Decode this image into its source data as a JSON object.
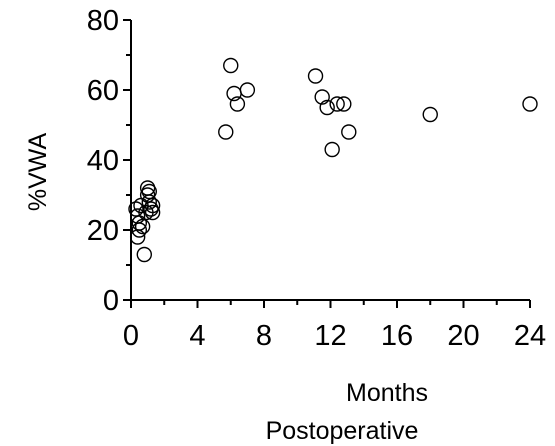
{
  "chart_data": {
    "type": "scatter",
    "title": "",
    "xlabel_line1": "Months",
    "xlabel_line2": "Postoperative",
    "ylabel": "%VWA",
    "xlim": [
      0,
      24
    ],
    "ylim": [
      0,
      80
    ],
    "x_ticks": [
      0,
      4,
      8,
      12,
      16,
      20,
      24
    ],
    "x_tick_labels": [
      "0",
      "4",
      "8",
      "12",
      "16",
      "20",
      "24"
    ],
    "y_ticks": [
      0,
      20,
      40,
      60,
      80
    ],
    "y_tick_labels": [
      "0",
      "20",
      "40",
      "60",
      "80"
    ],
    "grid": false,
    "legend": "none",
    "marker": "open-circle",
    "series": [
      {
        "points": [
          [
            0.3,
            26
          ],
          [
            0.4,
            24
          ],
          [
            0.5,
            22
          ],
          [
            0.4,
            18
          ],
          [
            0.6,
            27
          ],
          [
            0.7,
            21
          ],
          [
            0.8,
            13
          ],
          [
            0.9,
            25
          ],
          [
            1.0,
            30
          ],
          [
            1.0,
            32
          ],
          [
            1.1,
            28
          ],
          [
            1.2,
            26
          ],
          [
            1.3,
            25
          ],
          [
            1.3,
            27
          ],
          [
            1.1,
            31
          ],
          [
            0.5,
            20
          ],
          [
            5.7,
            48
          ],
          [
            6.0,
            67
          ],
          [
            6.2,
            59
          ],
          [
            6.4,
            56
          ],
          [
            7.0,
            60
          ],
          [
            11.1,
            64
          ],
          [
            11.5,
            58
          ],
          [
            11.8,
            55
          ],
          [
            12.1,
            43
          ],
          [
            12.4,
            56
          ],
          [
            12.8,
            56
          ],
          [
            13.1,
            48
          ],
          [
            18.0,
            53
          ],
          [
            24.0,
            56
          ]
        ]
      }
    ]
  }
}
